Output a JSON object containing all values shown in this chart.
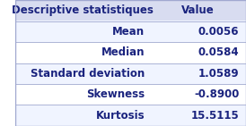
{
  "header": [
    "Descriptive statistiques",
    "Value"
  ],
  "rows": [
    [
      "Mean",
      "0.0056"
    ],
    [
      "Median",
      "0.0584"
    ],
    [
      "Standard deviation",
      "1.0589"
    ],
    [
      "Skewness",
      "-0.8900"
    ],
    [
      "Kurtosis",
      "15.5115"
    ]
  ],
  "header_bg": "#D8DCF0",
  "row_bg_odd": "#FFFFFF",
  "row_bg_even": "#F0F4FF",
  "header_text_color": "#1A237E",
  "row_text_color": "#1A237E",
  "border_color": "#A0A8D0",
  "header_fontsize": 8.5,
  "row_fontsize": 8.5,
  "fig_bg": "#FFFFFF"
}
